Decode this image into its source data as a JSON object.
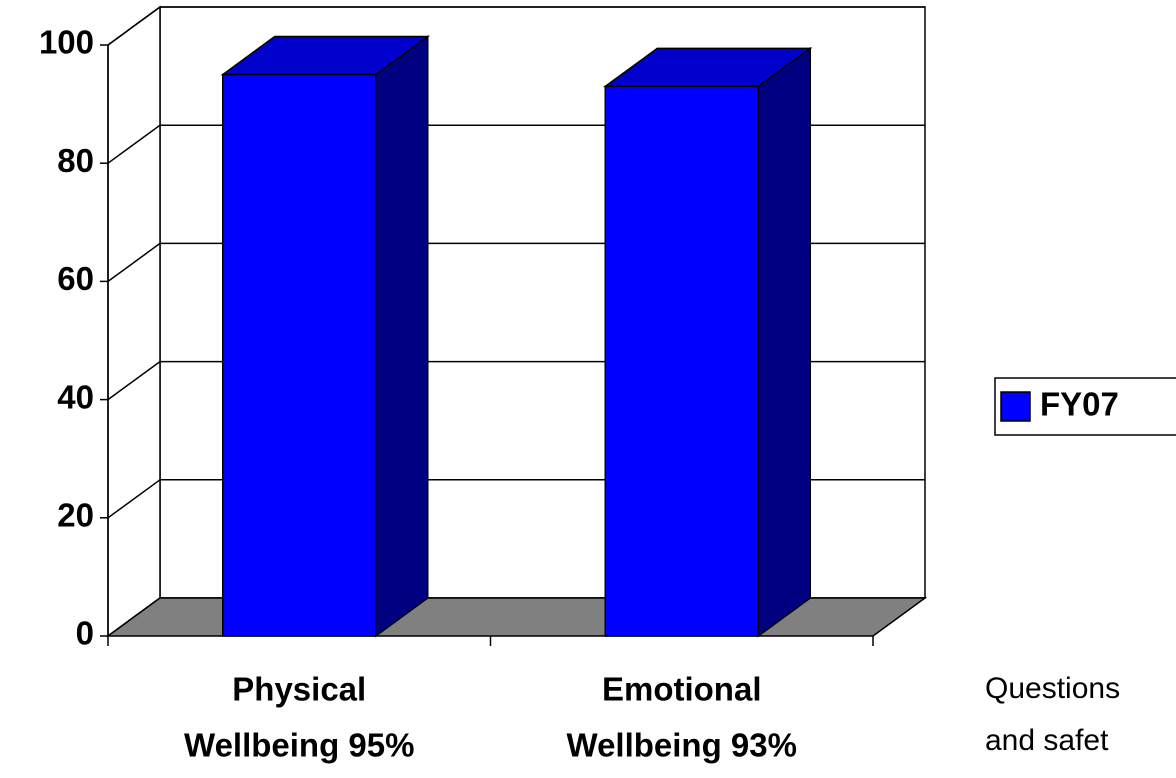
{
  "chart_data": {
    "type": "bar3d",
    "categories": [
      [
        "Physical",
        "Wellbeing 95%"
      ],
      [
        "Emotional",
        "Wellbeing 93%"
      ]
    ],
    "series": [
      {
        "name": "FY07",
        "color": "#0000ff",
        "values": [
          95,
          93
        ]
      }
    ],
    "ylim": [
      0,
      100
    ],
    "yticks": [
      0,
      20,
      40,
      60,
      80,
      100
    ],
    "grid": true,
    "legend": "right",
    "annotation": [
      "Questions",
      "and safet"
    ]
  }
}
